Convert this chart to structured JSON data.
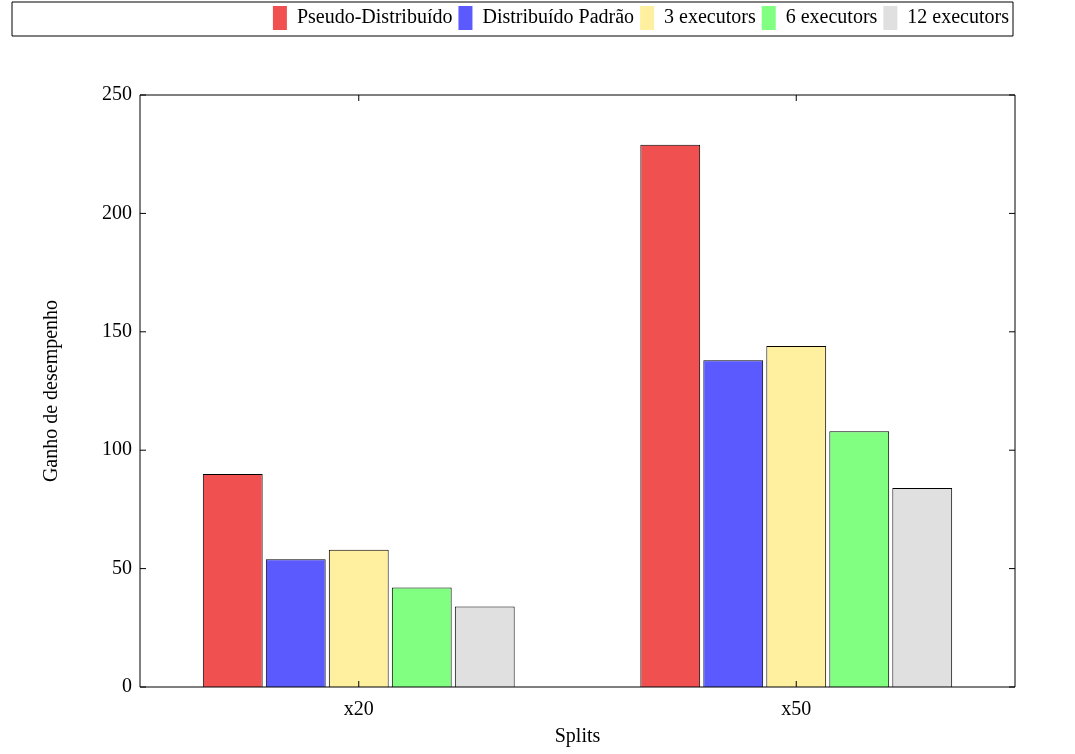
{
  "chart_data": {
    "type": "bar",
    "xlabel": "Splits",
    "ylabel": "Ganho de desempenho",
    "categories": [
      "x20",
      "x50"
    ],
    "series": [
      {
        "name": "Pseudo-Distribuído",
        "color": "#f05050",
        "values": [
          90,
          229
        ]
      },
      {
        "name": "Distribuído Padrão",
        "color": "#5a5aff",
        "values": [
          54,
          138
        ]
      },
      {
        "name": "3 executors",
        "color": "#fff0a0",
        "values": [
          58,
          144
        ]
      },
      {
        "name": "6 executors",
        "color": "#80ff80",
        "values": [
          42,
          108
        ]
      },
      {
        "name": "12 executors",
        "color": "#e0e0e0",
        "values": [
          34,
          84
        ]
      }
    ],
    "ylim": [
      0,
      250
    ],
    "yticks": [
      0,
      50,
      100,
      150,
      200,
      250
    ],
    "grid": false,
    "legend": "top"
  }
}
